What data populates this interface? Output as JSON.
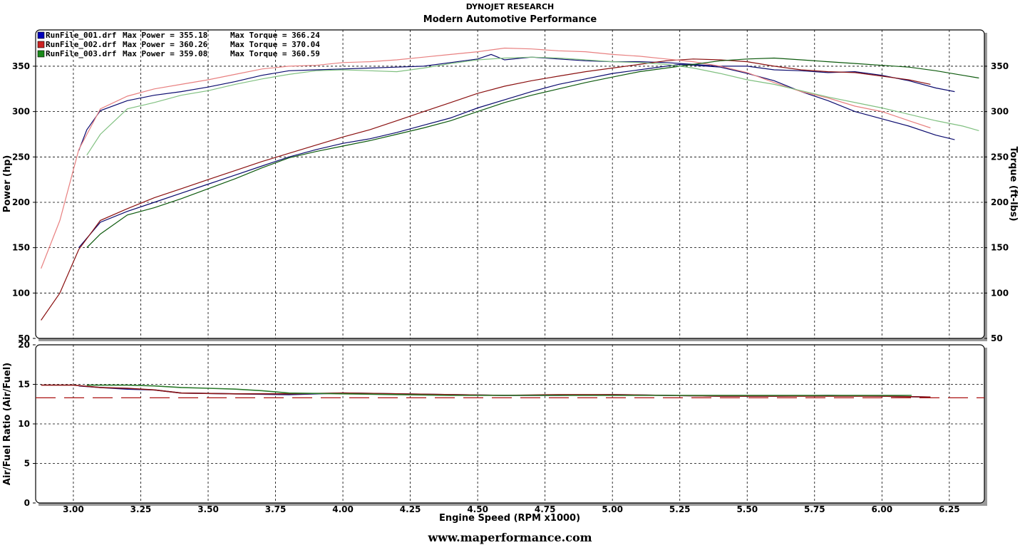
{
  "header": {
    "company": "DYNOJET RESEARCH",
    "shop": "Modern Automotive Performance"
  },
  "footer": {
    "url": "www.maperformance.com"
  },
  "chart_data": [
    {
      "type": "line",
      "name": "power_torque",
      "ylabel": "Power (hp)",
      "y2label": "Torque (ft-lbs)",
      "xlim": [
        2.86,
        6.38
      ],
      "ylim": [
        50,
        390
      ],
      "y2lim": [
        50,
        390
      ],
      "yticks": [
        "50",
        "100",
        "150",
        "200",
        "250",
        "300",
        "350"
      ],
      "grid": true,
      "legend_position": "top-left",
      "legend": [
        {
          "file": "RunFile_001.drf",
          "power_label": "Max Power = 355.18",
          "torque_label": "Max Torque = 366.24",
          "color": "#0000bb"
        },
        {
          "file": "RunFile_002.drf",
          "power_label": "Max Power = 360.26",
          "torque_label": "Max Torque = 370.04",
          "color": "#cc2222"
        },
        {
          "file": "RunFile_003.drf",
          "power_label": "Max Power = 359.08",
          "torque_label": "Max Torque = 360.59",
          "color": "#1a8a1a"
        }
      ],
      "series": [
        {
          "name": "RunFile_001.drf",
          "kind": "power",
          "color": "#0a0a6e",
          "x": [
            3.02,
            3.1,
            3.2,
            3.3,
            3.4,
            3.5,
            3.6,
            3.7,
            3.8,
            3.9,
            4.0,
            4.1,
            4.2,
            4.3,
            4.4,
            4.5,
            4.6,
            4.7,
            4.8,
            4.9,
            5.0,
            5.1,
            5.2,
            5.25,
            5.3,
            5.4,
            5.5,
            5.6,
            5.7,
            5.8,
            5.9,
            6.0,
            6.1,
            6.2,
            6.27
          ],
          "y": [
            150,
            178,
            190,
            200,
            210,
            220,
            230,
            240,
            250,
            258,
            265,
            270,
            277,
            285,
            293,
            304,
            313,
            322,
            330,
            336,
            342,
            346,
            350,
            352,
            351,
            349,
            342,
            334,
            322,
            312,
            300,
            292,
            284,
            274,
            269
          ]
        },
        {
          "name": "RunFile_001.drf",
          "kind": "torque",
          "color": "#0a0a6e",
          "x": [
            3.02,
            3.05,
            3.1,
            3.2,
            3.3,
            3.4,
            3.5,
            3.6,
            3.7,
            3.8,
            3.9,
            4.0,
            4.1,
            4.2,
            4.3,
            4.4,
            4.5,
            4.55,
            4.6,
            4.7,
            4.8,
            4.9,
            5.0,
            5.1,
            5.2,
            5.3,
            5.4,
            5.5,
            5.6,
            5.7,
            5.8,
            5.9,
            6.0,
            6.1,
            6.2,
            6.27
          ],
          "y": [
            257,
            280,
            301,
            312,
            318,
            322,
            327,
            333,
            340,
            345,
            346,
            347,
            348,
            349,
            350,
            354,
            358,
            363,
            357,
            360,
            358,
            356,
            355,
            355,
            354,
            352,
            350,
            350,
            346,
            345,
            343,
            344,
            340,
            334,
            326,
            322
          ]
        },
        {
          "name": "RunFile_002.drf",
          "kind": "power",
          "color": "#8a1010",
          "x": [
            2.88,
            2.95,
            3.02,
            3.1,
            3.2,
            3.3,
            3.4,
            3.5,
            3.6,
            3.7,
            3.8,
            3.9,
            4.0,
            4.1,
            4.2,
            4.3,
            4.4,
            4.5,
            4.6,
            4.7,
            4.8,
            4.9,
            5.0,
            5.1,
            5.2,
            5.3,
            5.4,
            5.5,
            5.6,
            5.7,
            5.8,
            5.9,
            6.0,
            6.1,
            6.18
          ],
          "y": [
            70,
            100,
            148,
            180,
            193,
            205,
            215,
            225,
            235,
            245,
            254,
            263,
            272,
            280,
            290,
            300,
            310,
            320,
            328,
            334,
            339,
            344,
            348,
            352,
            356,
            358,
            357,
            355,
            350,
            346,
            344,
            343,
            339,
            335,
            330
          ]
        },
        {
          "name": "RunFile_002.drf",
          "kind": "torque",
          "color": "#e88080",
          "x": [
            2.88,
            2.95,
            3.02,
            3.1,
            3.2,
            3.3,
            3.4,
            3.5,
            3.6,
            3.7,
            3.8,
            3.9,
            4.0,
            4.1,
            4.2,
            4.3,
            4.4,
            4.5,
            4.6,
            4.7,
            4.8,
            4.9,
            5.0,
            5.1,
            5.2,
            5.3,
            5.4,
            5.5,
            5.6,
            5.7,
            5.8,
            5.9,
            6.0,
            6.1,
            6.18
          ],
          "y": [
            127,
            180,
            258,
            303,
            317,
            325,
            330,
            335,
            341,
            347,
            350,
            351,
            354,
            355,
            357,
            360,
            363,
            366,
            370,
            369,
            367,
            366,
            363,
            361,
            358,
            355,
            350,
            343,
            332,
            322,
            315,
            306,
            300,
            290,
            282
          ]
        },
        {
          "name": "RunFile_003.drf",
          "kind": "power",
          "color": "#0d5a0d",
          "x": [
            3.05,
            3.1,
            3.2,
            3.3,
            3.4,
            3.5,
            3.6,
            3.7,
            3.8,
            3.9,
            4.0,
            4.1,
            4.2,
            4.3,
            4.4,
            4.5,
            4.6,
            4.7,
            4.8,
            4.9,
            5.0,
            5.1,
            5.2,
            5.3,
            5.4,
            5.5,
            5.6,
            5.7,
            5.8,
            5.9,
            6.0,
            6.1,
            6.2,
            6.3,
            6.36
          ],
          "y": [
            150,
            165,
            186,
            194,
            204,
            215,
            226,
            238,
            249,
            256,
            262,
            268,
            275,
            282,
            290,
            300,
            310,
            318,
            325,
            332,
            338,
            344,
            348,
            352,
            356,
            358,
            359,
            357,
            355,
            353,
            351,
            349,
            345,
            340,
            337
          ]
        },
        {
          "name": "RunFile_003.drf",
          "kind": "torque",
          "color": "#80c080",
          "x": [
            3.05,
            3.1,
            3.2,
            3.3,
            3.4,
            3.5,
            3.6,
            3.7,
            3.8,
            3.9,
            4.0,
            4.1,
            4.2,
            4.3,
            4.4,
            4.5,
            4.6,
            4.7,
            4.8,
            4.9,
            5.0,
            5.1,
            5.2,
            5.3,
            5.4,
            5.5,
            5.6,
            5.7,
            5.8,
            5.9,
            6.0,
            6.1,
            6.2,
            6.3,
            6.36
          ],
          "y": [
            252,
            275,
            303,
            310,
            318,
            323,
            330,
            336,
            341,
            345,
            346,
            345,
            344,
            348,
            353,
            357,
            359,
            360,
            359,
            357,
            355,
            354,
            352,
            348,
            342,
            335,
            330,
            323,
            316,
            310,
            304,
            297,
            290,
            284,
            279
          ]
        }
      ]
    },
    {
      "type": "line",
      "name": "air_fuel",
      "xlabel": "Engine Speed (RPM x1000)",
      "ylabel": "Air/Fuel Ratio (Air/Fuel)",
      "xlim": [
        2.86,
        6.38
      ],
      "ylim": [
        0,
        20
      ],
      "xticks": [
        "3.00",
        "3.25",
        "3.50",
        "3.75",
        "4.00",
        "4.25",
        "4.50",
        "4.75",
        "5.00",
        "5.25",
        "5.50",
        "5.75",
        "6.00",
        "6.25"
      ],
      "yticks": [
        "0",
        "5",
        "10",
        "15",
        "20"
      ],
      "grid": true,
      "reference_line": {
        "y": 13.3,
        "color": "#aa1111",
        "style": "dashed"
      },
      "series": [
        {
          "name": "RunFile_001.drf",
          "color": "#101080",
          "x": [
            3.02,
            3.1,
            3.2,
            3.3,
            3.4,
            3.6,
            3.8,
            4.0,
            4.2,
            4.4,
            4.6,
            4.8,
            5.0,
            5.2,
            5.4,
            5.6,
            5.8,
            6.0,
            6.17
          ],
          "y": [
            14.8,
            14.6,
            14.4,
            14.3,
            13.9,
            13.8,
            13.7,
            13.9,
            13.8,
            13.7,
            13.6,
            13.6,
            13.7,
            13.6,
            13.5,
            13.5,
            13.6,
            13.5,
            13.4
          ]
        },
        {
          "name": "RunFile_002.drf",
          "color": "#8a1515",
          "x": [
            2.88,
            3.0,
            3.1,
            3.2,
            3.3,
            3.4,
            3.6,
            3.8,
            4.0,
            4.2,
            4.4,
            4.6,
            4.8,
            5.0,
            5.2,
            5.4,
            5.6,
            5.8,
            6.0,
            6.18
          ],
          "y": [
            14.9,
            14.9,
            14.6,
            14.5,
            14.3,
            13.9,
            13.8,
            13.8,
            13.9,
            13.8,
            13.7,
            13.6,
            13.7,
            13.7,
            13.6,
            13.5,
            13.5,
            13.5,
            13.5,
            13.4
          ]
        },
        {
          "name": "RunFile_003.drf",
          "color": "#2a7a2a",
          "x": [
            3.05,
            3.1,
            3.2,
            3.3,
            3.4,
            3.5,
            3.6,
            3.7,
            3.8,
            4.0,
            4.2,
            4.4,
            4.6,
            4.8,
            5.0,
            5.2,
            5.4,
            5.6,
            5.8,
            6.0,
            6.11
          ],
          "y": [
            14.9,
            14.9,
            14.9,
            14.8,
            14.6,
            14.5,
            14.4,
            14.2,
            13.9,
            13.8,
            13.7,
            13.6,
            13.6,
            13.6,
            13.6,
            13.6,
            13.6,
            13.6,
            13.6,
            13.6,
            13.6
          ]
        }
      ]
    }
  ]
}
